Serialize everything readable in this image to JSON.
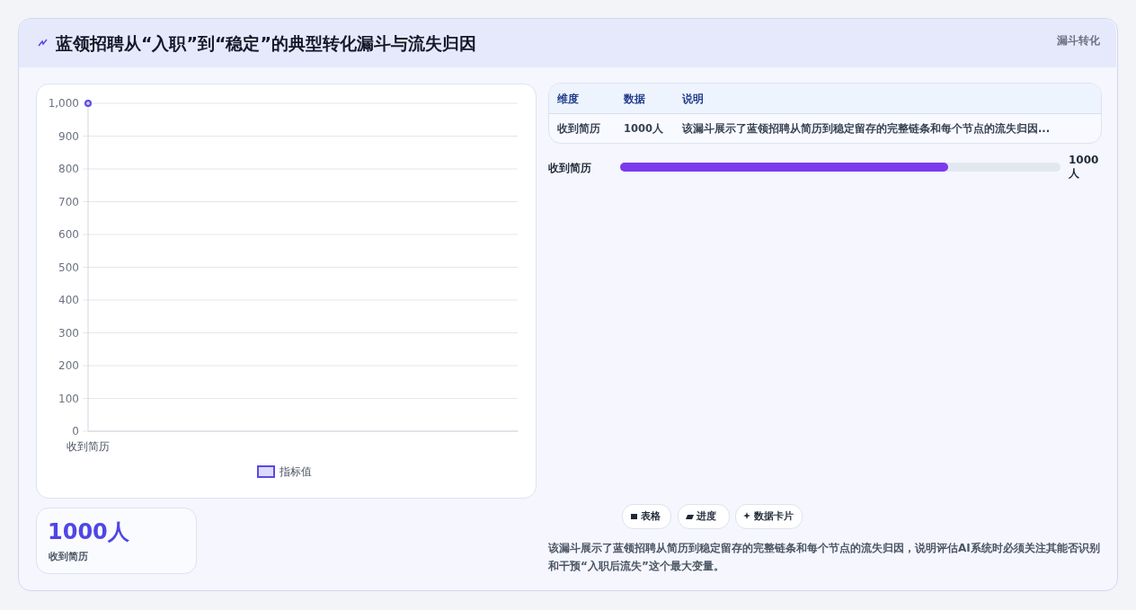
{
  "chart_data": [
    {
      "type": "line",
      "title": "蓝领招聘从“入职”到“稳定”的典型转化漏斗与流失归因",
      "annotations": [
        "漏斗转化"
      ],
      "categories": [
        "收到简历"
      ],
      "series": [
        {
          "name": "指标值",
          "color": "#5b4ae0",
          "values": [
            1000
          ]
        }
      ],
      "ylim": [
        0,
        1000
      ],
      "yticks": [
        0,
        100,
        200,
        300,
        400,
        500,
        600,
        700,
        800,
        900,
        {
          "value": 1000,
          "label": "1,000"
        }
      ],
      "grid": "y",
      "legend": "bottom",
      "marker": "circle"
    },
    {
      "type": "other",
      "annotations": [
        "收到简历",
        "1000 人",
        "维度",
        "数据",
        "说明",
        "收到简历",
        "1000人",
        "该漏斗展示了蓝领招聘从简历到稳定留存的完整链条和每个节点的流失归因...",
        "1000人",
        "收到简历",
        "表格",
        "进度",
        "数据卡片",
        "该漏斗展示了蓝领招聘从简历到稳定留存的完整链条和每个节点的流失归因，说明评估AI系统时必须关注其能否识别和干预“入职后流失”这个最大变量。"
      ]
    }
  ]
}
